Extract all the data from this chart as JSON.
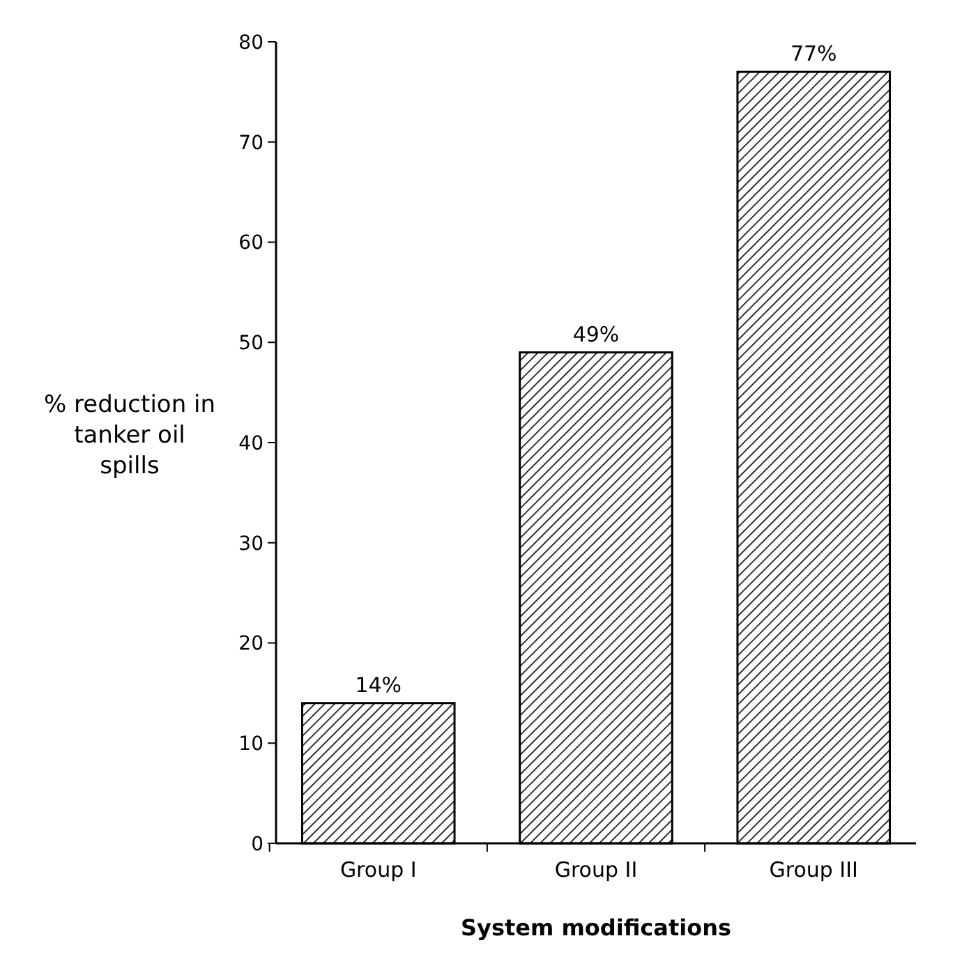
{
  "chart_data": {
    "type": "bar",
    "xlabel": "System modifications",
    "ylabel": "% reduction in tanker oil spills",
    "categories": [
      "Group I",
      "Group II",
      "Group III"
    ],
    "series": [
      {
        "color": "#000000",
        "values": [
          14,
          49,
          77
        ],
        "value_labels": [
          "14%",
          "49%",
          "77%"
        ]
      }
    ],
    "ylim": [
      0,
      80
    ],
    "yticks": [
      0,
      10,
      20,
      30,
      40,
      50,
      60,
      70,
      80
    ],
    "grid": false
  }
}
